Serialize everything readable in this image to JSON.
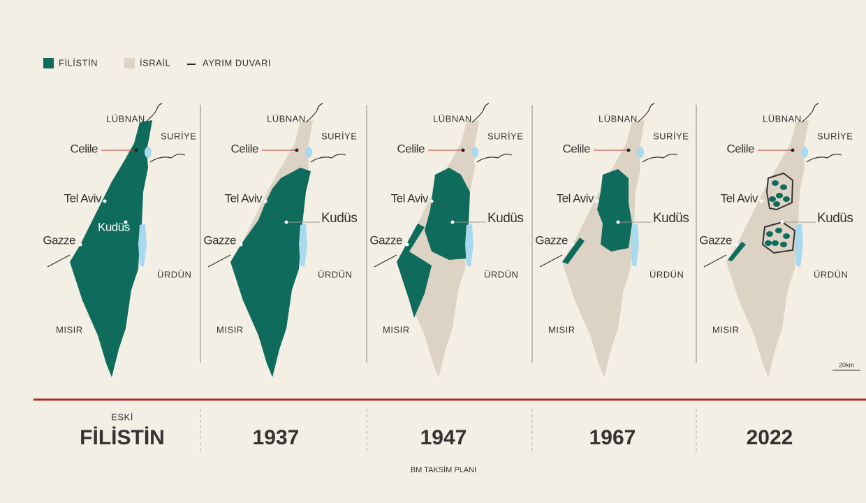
{
  "legend": {
    "palestine": "FİLİSTİN",
    "israel": "İSRAİL",
    "wall": "AYRIM DUVARI"
  },
  "map_labels": {
    "lebanon": "LÜBNAN",
    "syria": "SURİYE",
    "galilee": "Celile",
    "tel_aviv": "Tel Aviv",
    "jerusalem": "Kudüs",
    "gaza": "Gazze",
    "jordan": "ÜRDÜN",
    "egypt": "MISIR"
  },
  "scale": "20km",
  "panels": [
    {
      "overline": "ESKİ",
      "caption": "FİLİSTİN"
    },
    {
      "caption": "1937"
    },
    {
      "caption": "1947",
      "underline": "BM TAKSİM PLANI"
    },
    {
      "caption": "1967"
    },
    {
      "caption": "2022"
    }
  ]
}
